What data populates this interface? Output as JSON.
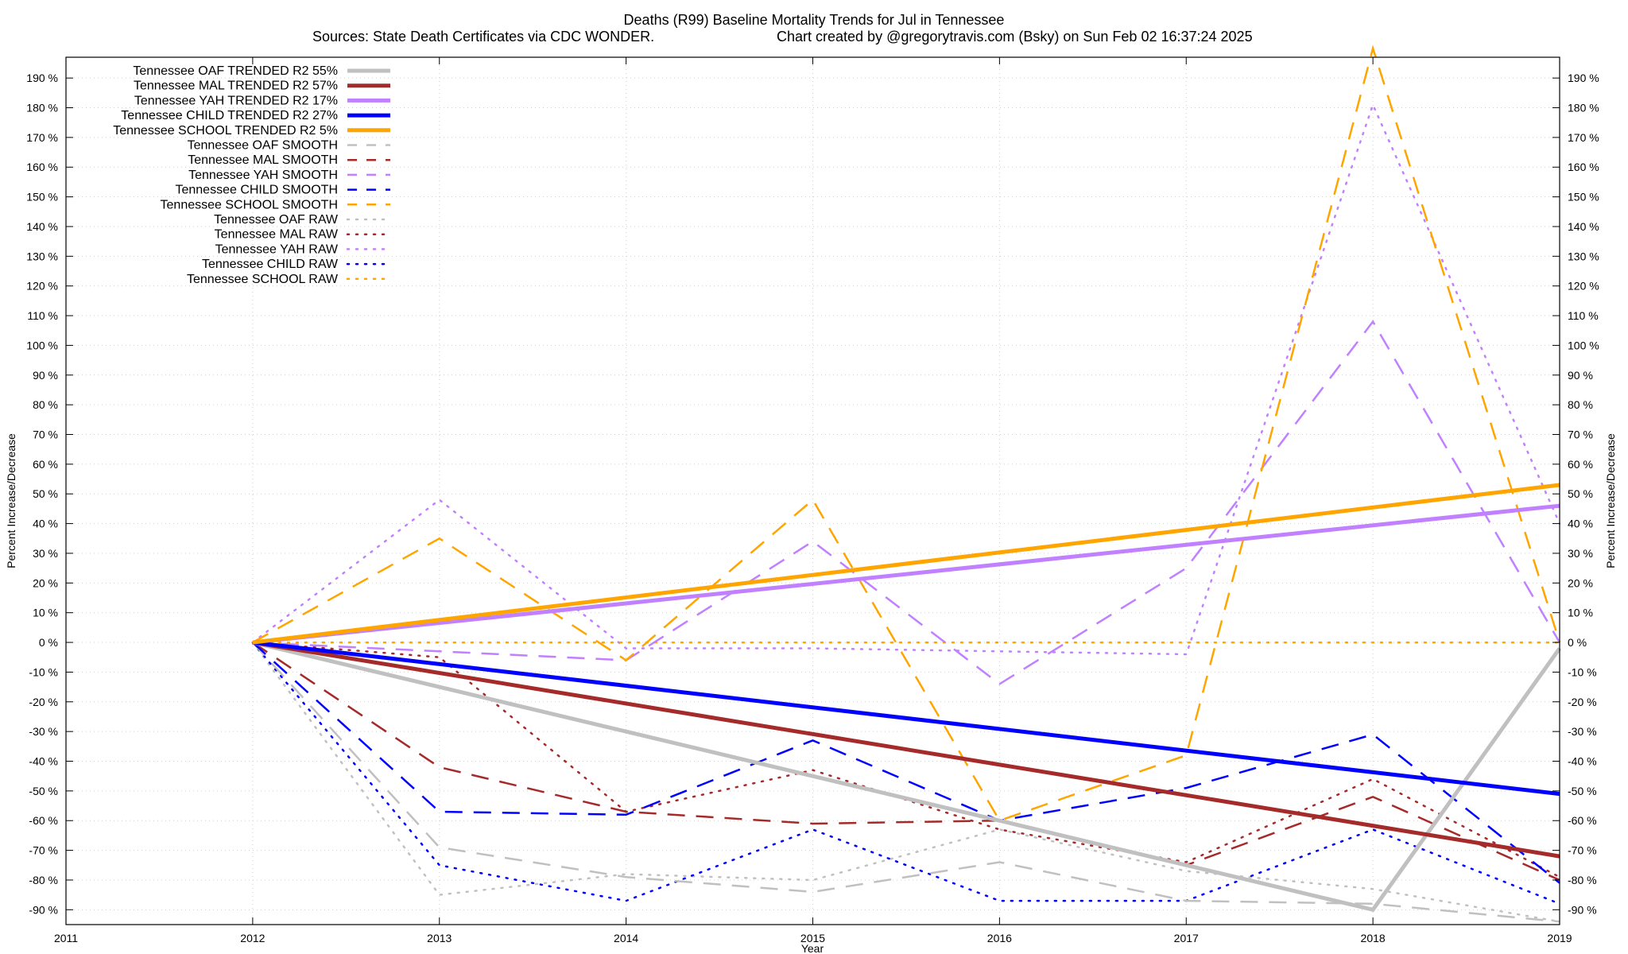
{
  "chart_data": {
    "type": "line",
    "title": "Deaths (R99)  Baseline Mortality Trends for Jul in Tennessee",
    "subtitle_left": "Sources: State Death Certificates via CDC WONDER.",
    "subtitle_right": "Chart created by @gregorytravis.com (Bsky) on Sun Feb 02 16:37:24 2025",
    "xlabel": "Year",
    "ylabel": "Percent Increase/Decrease",
    "xlim": [
      2011,
      2019
    ],
    "ylim": [
      -95,
      197
    ],
    "x_ticks": [
      2011,
      2012,
      2013,
      2014,
      2015,
      2016,
      2017,
      2018,
      2019
    ],
    "y_ticks": [
      -90,
      -80,
      -70,
      -60,
      -50,
      -40,
      -30,
      -20,
      -10,
      0,
      10,
      20,
      30,
      40,
      50,
      60,
      70,
      80,
      90,
      100,
      110,
      120,
      130,
      140,
      150,
      160,
      170,
      180,
      190
    ],
    "y_tick_suffix": " %",
    "grid": true,
    "legend_position": "top-left",
    "series": [
      {
        "name": "Tennessee OAF TRENDED R2  55%",
        "color": "#c0c0c0",
        "style": "solid",
        "x": [
          2012,
          2018,
          2019
        ],
        "y": [
          0,
          -90,
          -2
        ]
      },
      {
        "name": "Tennessee MAL TRENDED R2  57%",
        "color": "#a52a2a",
        "style": "solid",
        "x": [
          2012,
          2019
        ],
        "y": [
          0,
          -72
        ]
      },
      {
        "name": "Tennessee YAH TRENDED R2  17%",
        "color": "#c080ff",
        "style": "solid",
        "x": [
          2012,
          2019
        ],
        "y": [
          0,
          46
        ]
      },
      {
        "name": "Tennessee CHILD TRENDED R2  27%",
        "color": "#0000ff",
        "style": "solid",
        "x": [
          2012,
          2019
        ],
        "y": [
          0,
          -51
        ]
      },
      {
        "name": "Tennessee SCHOOL TRENDED R2   5%",
        "color": "#ffa500",
        "style": "solid",
        "x": [
          2012,
          2019
        ],
        "y": [
          0,
          53
        ]
      },
      {
        "name": "Tennessee OAF SMOOTH",
        "color": "#c0c0c0",
        "style": "dash",
        "x": [
          2012,
          2013,
          2014,
          2015,
          2016,
          2017,
          2018,
          2019
        ],
        "y": [
          0,
          -69,
          -79,
          -84,
          -74,
          -87,
          -88,
          -94
        ]
      },
      {
        "name": "Tennessee MAL SMOOTH",
        "color": "#a52a2a",
        "style": "dash",
        "x": [
          2012,
          2013,
          2014,
          2015,
          2016,
          2017,
          2018,
          2019
        ],
        "y": [
          0,
          -42,
          -57,
          -61,
          -60,
          -75,
          -52,
          -80
        ]
      },
      {
        "name": "Tennessee YAH SMOOTH",
        "color": "#c080ff",
        "style": "dash",
        "x": [
          2012,
          2013,
          2014,
          2015,
          2016,
          2017,
          2018,
          2019
        ],
        "y": [
          0,
          -3,
          -6,
          34,
          -14,
          25,
          108,
          0
        ]
      },
      {
        "name": "Tennessee CHILD SMOOTH",
        "color": "#0000ff",
        "style": "dash",
        "x": [
          2012,
          2013,
          2014,
          2015,
          2016,
          2017,
          2018,
          2019
        ],
        "y": [
          0,
          -57,
          -58,
          -33,
          -60,
          -49,
          -31,
          -81
        ]
      },
      {
        "name": "Tennessee SCHOOL SMOOTH",
        "color": "#ffa500",
        "style": "dash",
        "x": [
          2012,
          2013,
          2014,
          2015,
          2016,
          2017,
          2018,
          2019
        ],
        "y": [
          0,
          35,
          -6,
          48,
          -60,
          -38,
          200,
          0
        ]
      },
      {
        "name": "Tennessee OAF RAW",
        "color": "#c0c0c0",
        "style": "dot",
        "x": [
          2012,
          2013,
          2014,
          2015,
          2016,
          2017,
          2018,
          2019
        ],
        "y": [
          0,
          -85,
          -78,
          -80,
          -63,
          -77,
          -83,
          -94
        ]
      },
      {
        "name": "Tennessee MAL RAW",
        "color": "#a52a2a",
        "style": "dot",
        "x": [
          2012,
          2013,
          2014,
          2015,
          2016,
          2017,
          2018,
          2019
        ],
        "y": [
          0,
          -5,
          -57,
          -43,
          -63,
          -74,
          -46,
          -79
        ]
      },
      {
        "name": "Tennessee YAH RAW",
        "color": "#c080ff",
        "style": "dot",
        "x": [
          2012,
          2013,
          2014,
          2015,
          2016,
          2017,
          2018,
          2019
        ],
        "y": [
          0,
          48,
          -2,
          -2,
          -3,
          -4,
          181,
          40
        ]
      },
      {
        "name": "Tennessee CHILD RAW",
        "color": "#0000ff",
        "style": "dot",
        "x": [
          2012,
          2013,
          2014,
          2015,
          2016,
          2017,
          2018,
          2019
        ],
        "y": [
          0,
          -75,
          -87,
          -63,
          -87,
          -87,
          -63,
          -88
        ]
      },
      {
        "name": "Tennessee SCHOOL RAW",
        "color": "#ffa500",
        "style": "dot",
        "x": [
          2012,
          2013,
          2014,
          2015,
          2016,
          2017,
          2018,
          2019
        ],
        "y": [
          0,
          0,
          0,
          0,
          0,
          0,
          0,
          0
        ]
      }
    ]
  }
}
